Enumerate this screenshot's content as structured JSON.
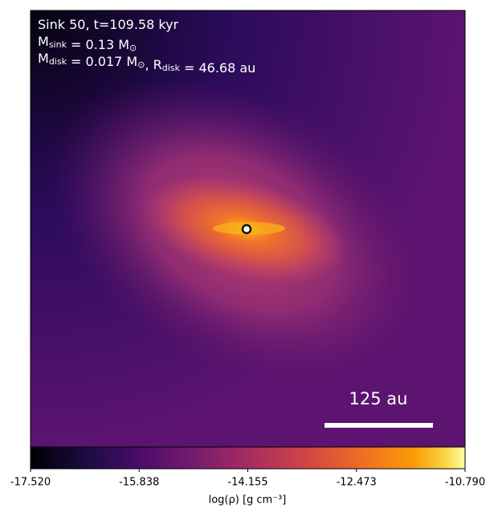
{
  "chart_data": {
    "type": "image",
    "annotation_lines": [
      [
        {
          "t": "Sink 50, t=109.58 kyr"
        }
      ],
      [
        {
          "t": "M"
        },
        {
          "sub": "sink"
        },
        {
          "t": " = 0.13 M"
        },
        {
          "sub": "⊙"
        }
      ],
      [
        {
          "t": "M"
        },
        {
          "sub": "disk"
        },
        {
          "t": " = 0.017 M"
        },
        {
          "sub": "⊙"
        },
        {
          "t": ", R"
        },
        {
          "sub": "disk"
        },
        {
          "t": " = 46.68 au"
        }
      ]
    ],
    "scale_bar": {
      "label": "125 au"
    },
    "colorbar": {
      "label": "log(ρ) [g cm⁻³]",
      "colormap": "inferno",
      "xlim": [
        -17.52,
        -10.79
      ],
      "xticks": [
        {
          "value": -17.52,
          "label": "-17.520"
        },
        -15.838,
        -14.155,
        -12.473,
        {
          "value": -10.79,
          "label": "-10.790"
        }
      ]
    }
  }
}
